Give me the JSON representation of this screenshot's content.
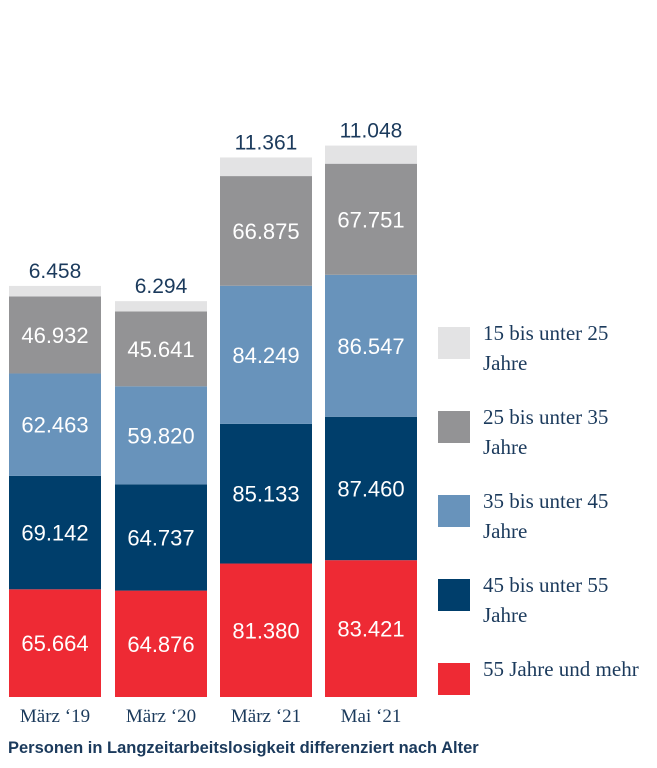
{
  "chart_data": {
    "type": "bar",
    "stacked": true,
    "categories": [
      "März ‘19",
      "März ‘20",
      "März ‘21",
      "Mai ‘21"
    ],
    "series": [
      {
        "name": "55 Jahre und mehr",
        "color": "#ee2a34",
        "values": [
          65664,
          64876,
          81380,
          83421
        ],
        "labels": [
          "65.664",
          "64.876",
          "81.380",
          "83.421"
        ]
      },
      {
        "name": "45 bis unter 55 Jahre",
        "color": "#003e6b",
        "values": [
          69142,
          64737,
          85133,
          87460
        ],
        "labels": [
          "69.142",
          "64.737",
          "85.133",
          "87.460"
        ]
      },
      {
        "name": "35 bis unter 45 Jahre",
        "color": "#6893bb",
        "values": [
          62463,
          59820,
          84249,
          86547
        ],
        "labels": [
          "62.463",
          "59.820",
          "84.249",
          "86.547"
        ]
      },
      {
        "name": "25 bis unter 35 Jahre",
        "color": "#939395",
        "values": [
          46932,
          45641,
          66875,
          67751
        ],
        "labels": [
          "46.932",
          "45.641",
          "66.875",
          "67.751"
        ]
      },
      {
        "name": "15 bis unter 25 Jahre",
        "color": "#e3e3e4",
        "values": [
          6458,
          6294,
          11361,
          11048
        ],
        "labels": [
          "6.458",
          "6.294",
          "11.361",
          "11.048"
        ]
      }
    ],
    "legend_position": "right",
    "grid": false,
    "caption": "Personen in Langzeitarbeitslosigkeit differenziert nach Alter"
  }
}
